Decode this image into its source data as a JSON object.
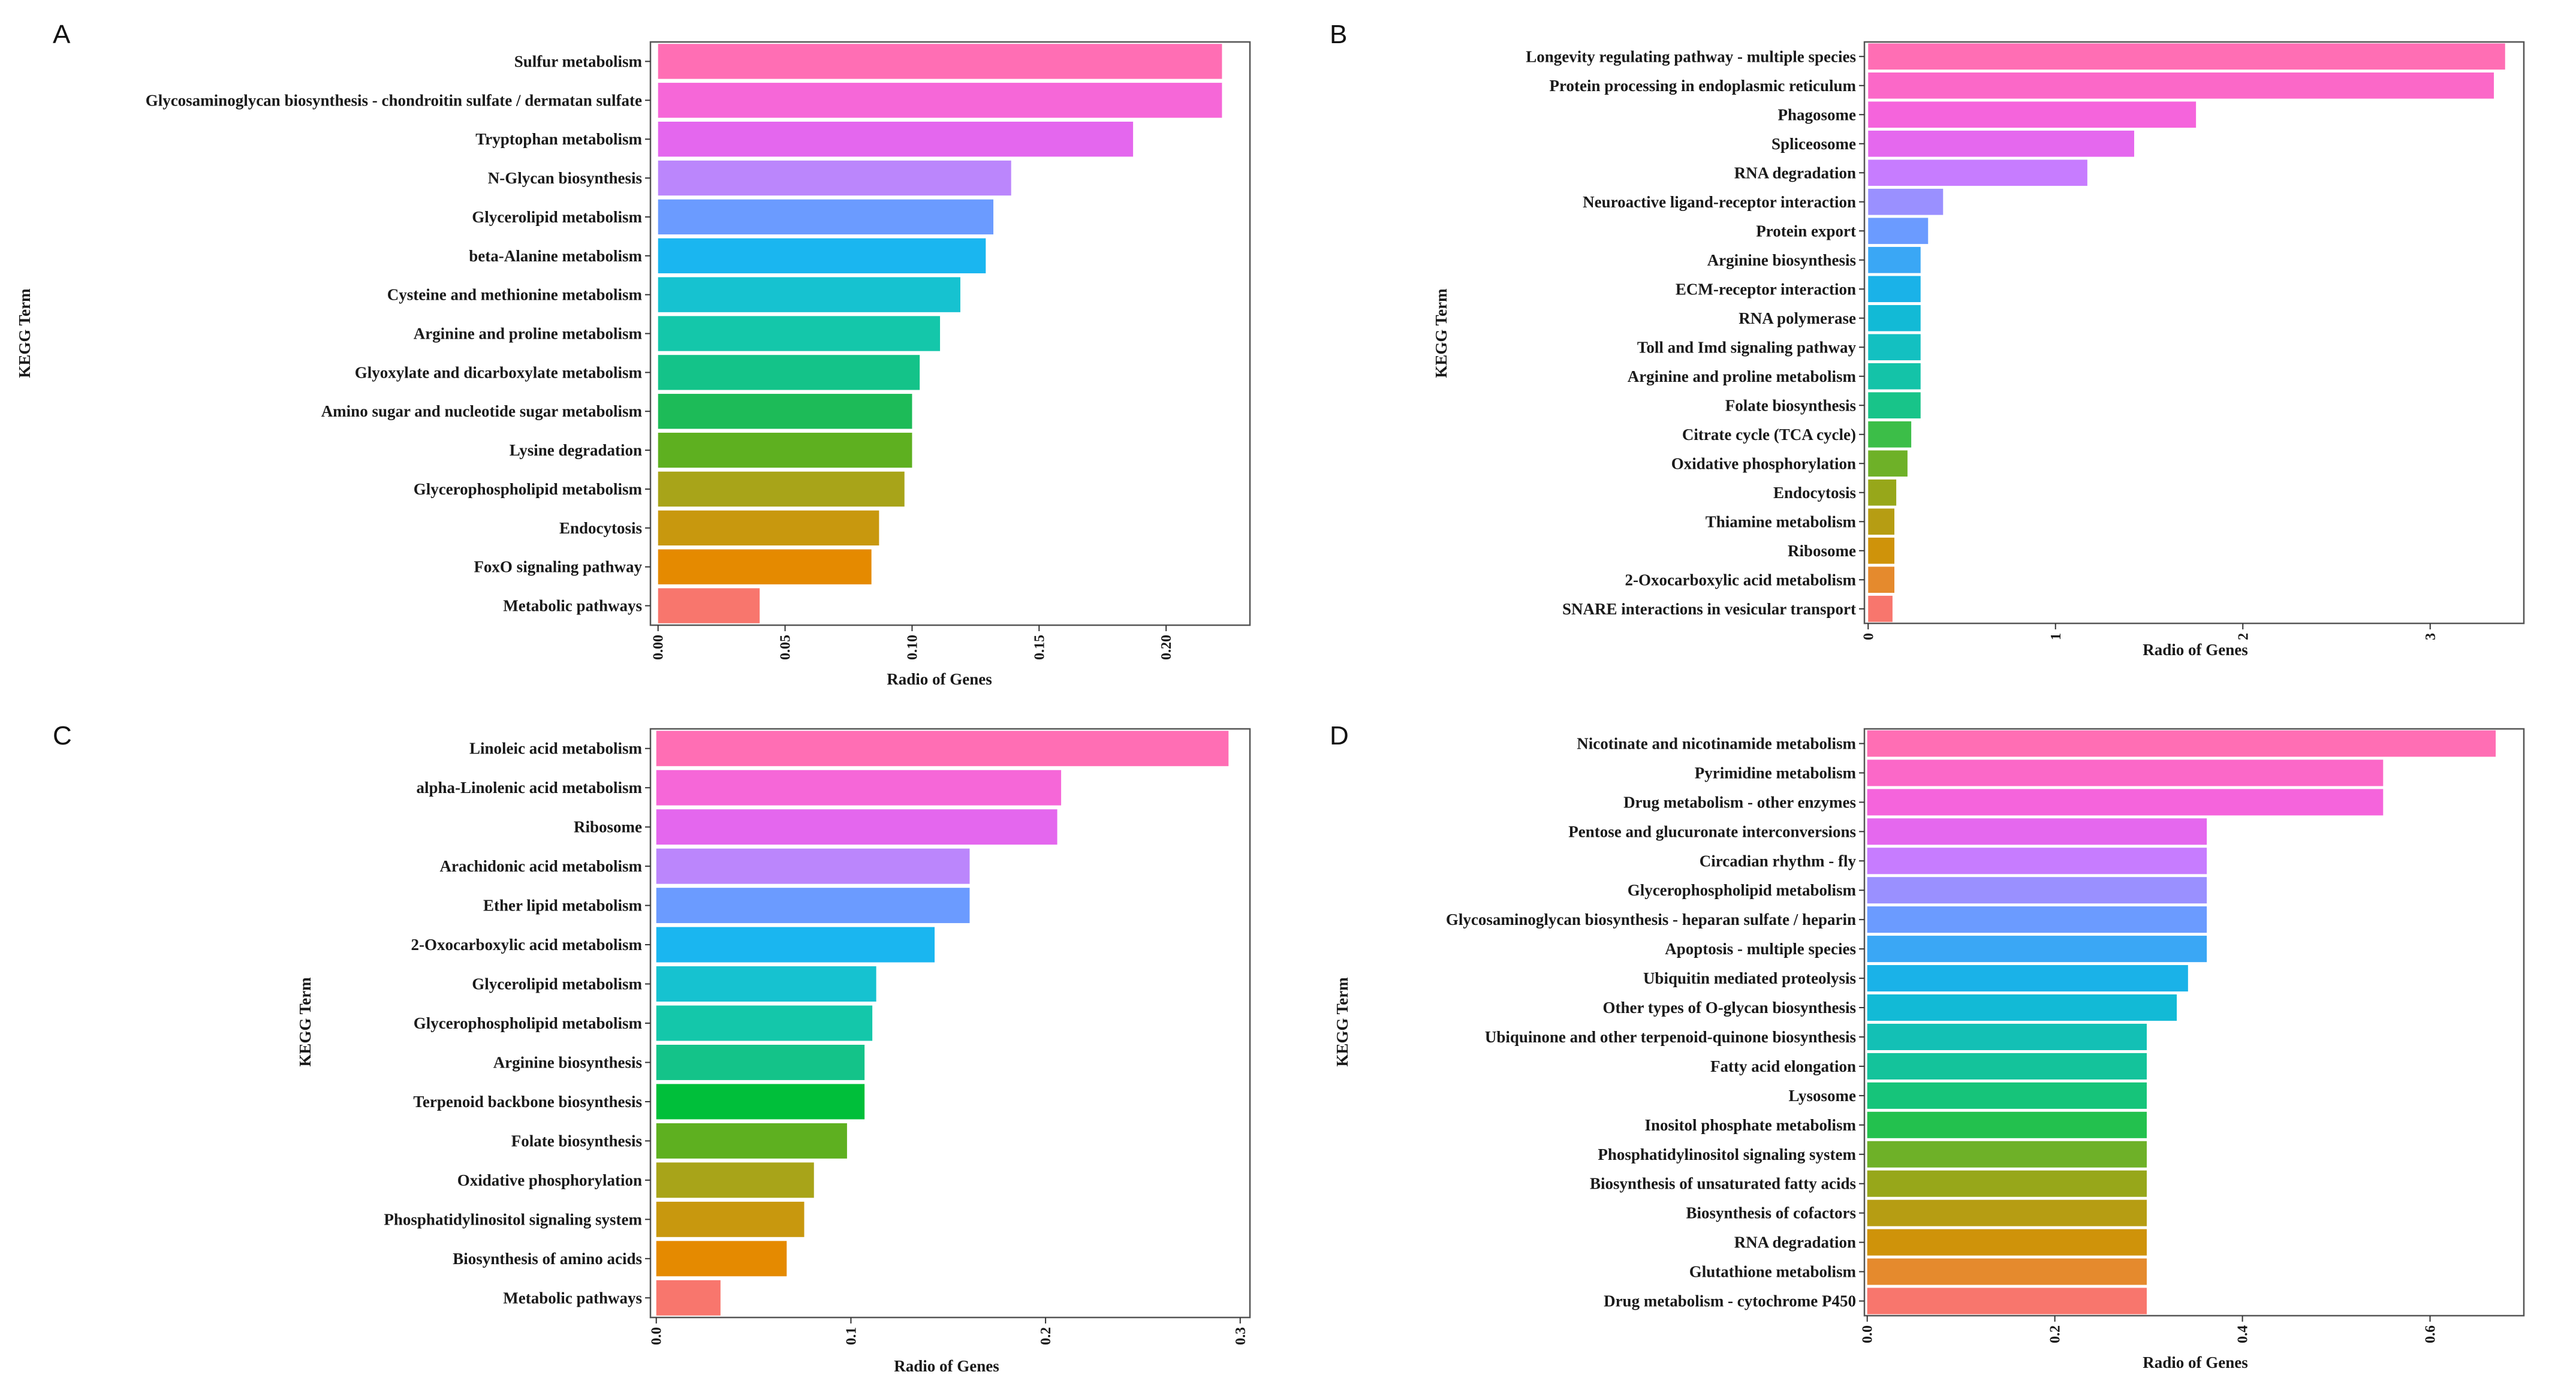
{
  "chart_data": [
    {
      "panel": "A",
      "type": "bar",
      "orientation": "horizontal",
      "xlabel": "Radio of Genes",
      "ylabel": "KEGG Term",
      "xlim": [
        -0.003,
        0.233
      ],
      "xticks": [
        0.0,
        0.05,
        0.1,
        0.15,
        0.2
      ],
      "xtick_labels": [
        "0.00",
        "0.05",
        "0.10",
        "0.15",
        "0.20"
      ],
      "categories": [
        "Sulfur metabolism",
        "Glycosaminoglycan biosynthesis - chondroitin sulfate / dermatan sulfate",
        "Tryptophan metabolism",
        "N-Glycan biosynthesis",
        "Glycerolipid metabolism",
        "beta-Alanine metabolism",
        "Cysteine and methionine metabolism",
        "Arginine and proline metabolism",
        "Glyoxylate and dicarboxylate metabolism",
        "Amino sugar and nucleotide sugar metabolism",
        "Lysine degradation",
        "Glycerophospholipid metabolism",
        "Endocytosis",
        "FoxO signaling pathway",
        "Metabolic pathways"
      ],
      "values": [
        0.222,
        0.222,
        0.187,
        0.139,
        0.132,
        0.129,
        0.119,
        0.111,
        0.103,
        0.1,
        0.1,
        0.097,
        0.087,
        0.084,
        0.04
      ],
      "colors": [
        "#FF6EB4",
        "#F667D8",
        "#E467EE",
        "#BB86FC",
        "#6B9BFF",
        "#1AB6F0",
        "#16C2D0",
        "#14C7AA",
        "#14C389",
        "#1DBB58",
        "#5EB020",
        "#A8A419",
        "#C8980E",
        "#E58A00",
        "#F8766D"
      ]
    },
    {
      "panel": "B",
      "type": "bar",
      "orientation": "horizontal",
      "xlabel": "Radio of Genes",
      "ylabel": "KEGG Term",
      "xlim": [
        -0.02,
        3.5
      ],
      "xticks": [
        0,
        1,
        2,
        3
      ],
      "xtick_labels": [
        "0",
        "1",
        "2",
        "3"
      ],
      "categories": [
        "Longevity regulating pathway - multiple species",
        "Protein processing in endoplasmic reticulum",
        "Phagosome",
        "Spliceosome",
        "RNA degradation",
        "Neuroactive ligand-receptor interaction",
        "Protein export",
        "Arginine biosynthesis",
        "ECM-receptor interaction",
        "RNA polymerase",
        "Toll and Imd signaling pathway",
        "Arginine and proline metabolism",
        "Folate biosynthesis",
        "Citrate cycle (TCA cycle)",
        "Oxidative phosphorylation",
        "Endocytosis",
        "Thiamine metabolism",
        "Ribosome",
        "2-Oxocarboxylic acid metabolism",
        "SNARE interactions in vesicular transport"
      ],
      "values": [
        3.4,
        3.34,
        1.75,
        1.42,
        1.17,
        0.4,
        0.32,
        0.28,
        0.28,
        0.28,
        0.28,
        0.28,
        0.28,
        0.23,
        0.21,
        0.15,
        0.14,
        0.14,
        0.14,
        0.13
      ],
      "colors": [
        "#FF6EB4",
        "#FB68C8",
        "#F564DC",
        "#E568EE",
        "#C77CFF",
        "#9A90FF",
        "#6B9BFF",
        "#3AA7F5",
        "#1AB2E8",
        "#12BAD6",
        "#13C0C1",
        "#14C3A8",
        "#18C489",
        "#3CBE48",
        "#6EB128",
        "#97A71A",
        "#B69D13",
        "#CF930A",
        "#E58A2D",
        "#F8766D"
      ]
    },
    {
      "panel": "C",
      "type": "bar",
      "orientation": "horizontal",
      "xlabel": "Radio of Genes",
      "ylabel": "KEGG Term",
      "xlim": [
        -0.003,
        0.305
      ],
      "xticks": [
        0.0,
        0.1,
        0.2,
        0.3
      ],
      "xtick_labels": [
        "0.0",
        "0.1",
        "0.2",
        "0.3"
      ],
      "categories": [
        "Linoleic acid metabolism",
        "alpha-Linolenic acid metabolism",
        "Ribosome",
        "Arachidonic acid metabolism",
        "Ether lipid metabolism",
        "2-Oxocarboxylic acid metabolism",
        "Glycerolipid metabolism",
        "Glycerophospholipid metabolism",
        "Arginine biosynthesis",
        "Terpenoid backbone biosynthesis",
        "Folate biosynthesis",
        "Oxidative phosphorylation",
        "Phosphatidylinositol signaling system",
        "Biosynthesis of amino acids",
        "Metabolic pathways"
      ],
      "values": [
        0.294,
        0.208,
        0.206,
        0.161,
        0.161,
        0.143,
        0.113,
        0.111,
        0.107,
        0.107,
        0.098,
        0.081,
        0.076,
        0.067,
        0.033
      ],
      "colors": [
        "#FF6EB4",
        "#F667D8",
        "#E467EE",
        "#BB86FC",
        "#6B9BFF",
        "#1AB6F0",
        "#16C2D0",
        "#14C7AA",
        "#14C389",
        "#00BF3A",
        "#5EB020",
        "#A8A419",
        "#C8980E",
        "#E58A00",
        "#F8766D"
      ]
    },
    {
      "panel": "D",
      "type": "bar",
      "orientation": "horizontal",
      "xlabel": "Radio of Genes",
      "ylabel": "KEGG Term",
      "xlim": [
        -0.003,
        0.7
      ],
      "xticks": [
        0.0,
        0.2,
        0.4,
        0.6
      ],
      "xtick_labels": [
        "0.0",
        "0.2",
        "0.4",
        "0.6"
      ],
      "categories": [
        "Nicotinate and nicotinamide metabolism",
        "Pyrimidine metabolism",
        "Drug metabolism - other enzymes",
        "Pentose and glucuronate interconversions",
        "Circadian rhythm - fly",
        "Glycerophospholipid metabolism",
        "Glycosaminoglycan biosynthesis - heparan sulfate / heparin",
        "Apoptosis - multiple species",
        "Ubiquitin mediated proteolysis",
        "Other types of O-glycan biosynthesis",
        "Ubiquinone and other terpenoid-quinone biosynthesis",
        "Fatty acid elongation",
        "Lysosome",
        "Inositol phosphate metabolism",
        "Phosphatidylinositol signaling system",
        "Biosynthesis of unsaturated fatty acids",
        "Biosynthesis of cofactors",
        "RNA degradation",
        "Glutathione metabolism",
        "Drug metabolism - cytochrome P450"
      ],
      "values": [
        0.67,
        0.55,
        0.55,
        0.362,
        0.362,
        0.362,
        0.362,
        0.362,
        0.342,
        0.33,
        0.298,
        0.298,
        0.298,
        0.298,
        0.298,
        0.298,
        0.298,
        0.298,
        0.298,
        0.298
      ],
      "colors": [
        "#FF6EB4",
        "#FB68C8",
        "#F564DC",
        "#E568EE",
        "#C77CFF",
        "#9A90FF",
        "#6B9BFF",
        "#3AA7F5",
        "#1AB2E8",
        "#12BAD6",
        "#13C0B5",
        "#14C39B",
        "#16C47A",
        "#23C14E",
        "#6EB128",
        "#97A71A",
        "#B69D13",
        "#CF930A",
        "#E58A2D",
        "#F8766D"
      ]
    }
  ]
}
